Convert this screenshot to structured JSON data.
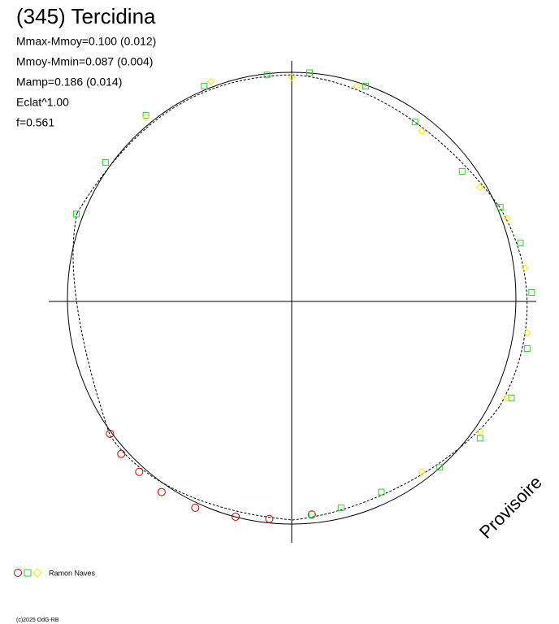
{
  "chart_data": {
    "type": "scatter",
    "title": "(345) Tercidina",
    "stats": [
      "Mmax-Mmoy=0.100 (0.012)",
      "Mmoy-Mmin=0.087 (0.004)",
      "Mamp=0.186 (0.014)",
      "Eclat^1.00",
      "f=0.561"
    ],
    "legend_label": "Ramon Naves",
    "watermark": "Provisoire",
    "credit": "(c)2025 OdG-RB",
    "xlim": [
      -1.1,
      1.1
    ],
    "ylim": [
      -1.1,
      1.1
    ],
    "series": [
      {
        "color": "#cc0000",
        "marker": "circle",
        "x": [
          -0.81,
          -0.76,
          -0.68,
          -0.58,
          -0.43,
          -0.25,
          -0.1,
          0.09
        ],
        "values": [
          -0.59,
          -0.68,
          -0.76,
          -0.85,
          -0.92,
          -0.96,
          -0.97,
          -0.95
        ]
      },
      {
        "color": "#33cc33",
        "marker": "square",
        "x": [
          -0.96,
          -0.83,
          -0.65,
          -0.39,
          -0.11,
          0.08,
          0.33,
          0.55,
          0.76,
          0.93,
          1.02,
          1.07,
          1.05,
          0.98,
          0.84,
          0.66,
          0.4,
          0.22,
          0.09
        ],
        "values": [
          0.39,
          0.62,
          0.83,
          0.96,
          1.01,
          1.02,
          0.96,
          0.8,
          0.58,
          0.42,
          0.26,
          0.04,
          -0.21,
          -0.43,
          -0.61,
          -0.74,
          -0.85,
          -0.92,
          -0.95
        ]
      },
      {
        "color": "#eeee00",
        "marker": "diamond",
        "x": [
          -0.65,
          -0.36,
          0.0,
          0.29,
          0.58,
          0.84,
          0.96,
          1.04,
          1.05,
          0.96,
          0.84,
          0.58
        ],
        "values": [
          0.82,
          0.98,
          1.0,
          0.96,
          0.76,
          0.51,
          0.37,
          0.15,
          -0.14,
          -0.43,
          -0.58,
          -0.76
        ]
      }
    ]
  }
}
